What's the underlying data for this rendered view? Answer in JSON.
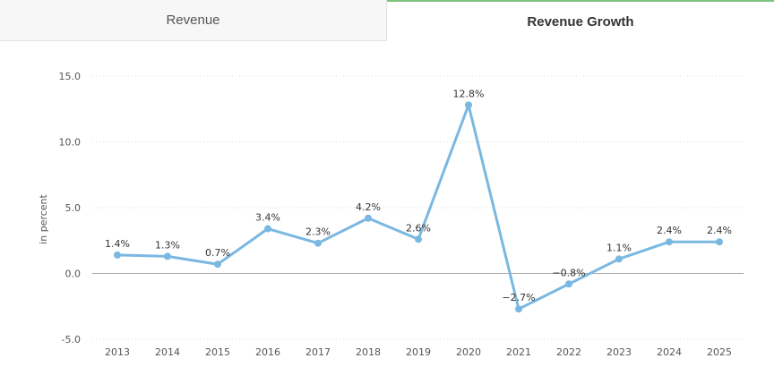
{
  "tabs": [
    {
      "label": "Revenue",
      "active": false
    },
    {
      "label": "Revenue Growth",
      "active": true
    }
  ],
  "colors": {
    "series": "#7ab8e2",
    "grid": "#dddddd",
    "zero": "#aaaaaa",
    "active_tab_border": "#7cc47c"
  },
  "chart_data": {
    "type": "line",
    "title": "Revenue Growth",
    "ylabel": "in percent",
    "xlabel": "",
    "ylim": [
      -5,
      15
    ],
    "yticks": [
      "15.0",
      "10.0",
      "5.0",
      "0.0",
      "-5.0"
    ],
    "ytick_values": [
      15,
      10,
      5,
      0,
      -5
    ],
    "categories": [
      "2013",
      "2014",
      "2015",
      "2016",
      "2017",
      "2018",
      "2019",
      "2020",
      "2021",
      "2022",
      "2023",
      "2024",
      "2025"
    ],
    "values": [
      1.4,
      1.3,
      0.7,
      3.4,
      2.3,
      4.2,
      2.6,
      12.8,
      -2.7,
      -0.8,
      1.1,
      2.4,
      2.4
    ],
    "labels": [
      "1.4%",
      "1.3%",
      "0.7%",
      "3.4%",
      "2.3%",
      "4.2%",
      "2.6%",
      "12.8%",
      "−2.7%",
      "−0.8%",
      "1.1%",
      "2.4%",
      "2.4%"
    ],
    "grid": true
  }
}
